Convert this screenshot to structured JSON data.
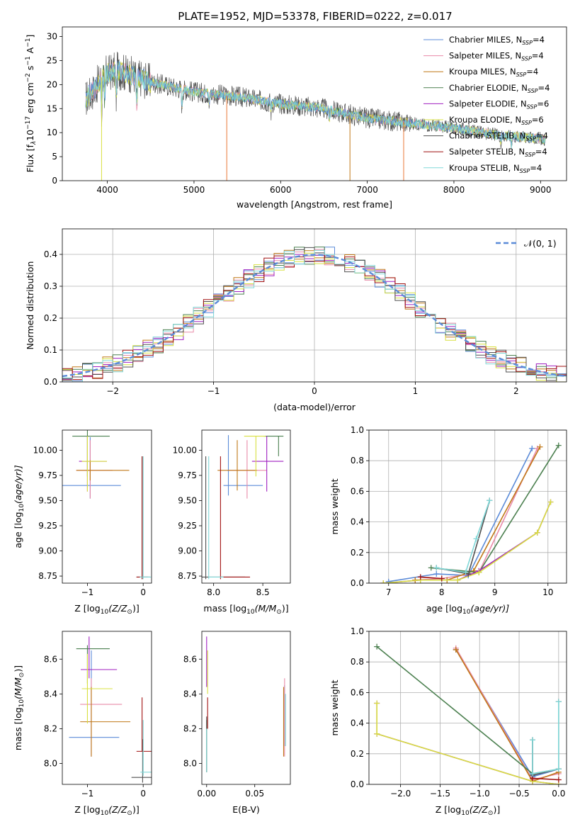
{
  "title": "PLATE=1952, MJD=53378, FIBERID=0222, z=0.017",
  "colors": {
    "Chabrier MILES": "#5b8bd8",
    "Salpeter MILES": "#e88aa8",
    "Kroupa MILES": "#c07818",
    "Chabrier ELODIE": "#4c8050",
    "Salpeter ELODIE": "#a020c0",
    "Kroupa ELODIE": "#d8e040",
    "Chabrier STELIB": "#505050",
    "Salpeter STELIB": "#a01010",
    "Kroupa STELIB": "#80d8d8",
    "normal": "#5b8bd8",
    "extra_orange": "#e87838"
  },
  "chart_data": [
    {
      "id": "spectrum",
      "type": "line",
      "xlabel": "wavelength [Angstrom, rest frame]",
      "ylabel_main": "Flux [f",
      "ylabel_sub": "λ",
      "ylabel_rest": "10",
      "ylabel_exp": "−17",
      "ylabel_rest2": " erg cm",
      "ylabel_exp2": "−2",
      "ylabel_rest3": " s",
      "ylabel_exp3": "−1",
      "ylabel_rest4": " A",
      "ylabel_exp4": "−1",
      "ylabel_end": "]",
      "xlim": [
        3480,
        9300
      ],
      "ylim": [
        0,
        32
      ],
      "xticks": [
        4000,
        5000,
        6000,
        7000,
        8000,
        9000
      ],
      "yticks": [
        0,
        5,
        10,
        15,
        20,
        25,
        30
      ],
      "continuum": [
        [
          3750,
          17
        ],
        [
          3850,
          19
        ],
        [
          3950,
          22
        ],
        [
          4100,
          23
        ],
        [
          4300,
          22
        ],
        [
          4500,
          20.5
        ],
        [
          5000,
          18.5
        ],
        [
          5500,
          17.5
        ],
        [
          6000,
          16
        ],
        [
          6500,
          15
        ],
        [
          7000,
          13
        ],
        [
          7500,
          12
        ],
        [
          8000,
          11
        ],
        [
          8500,
          9.5
        ],
        [
          9000,
          8.8
        ],
        [
          9050,
          8.5
        ]
      ],
      "drops": [
        {
          "x": 3933,
          "series": "Kroupa ELODIE"
        },
        {
          "x": 5378,
          "series": "extra_orange"
        },
        {
          "x": 6800,
          "series": "Kroupa MILES"
        },
        {
          "x": 7420,
          "series": "extra_orange"
        }
      ],
      "legend": [
        {
          "name": "Chabrier MILES",
          "count": "4"
        },
        {
          "name": "Salpeter MILES",
          "count": "4"
        },
        {
          "name": "Kroupa MILES",
          "count": "4"
        },
        {
          "name": "Chabrier ELODIE",
          "count": "4"
        },
        {
          "name": "Salpeter ELODIE",
          "count": "6"
        },
        {
          "name": "Kroupa ELODIE",
          "count": "6"
        },
        {
          "name": "Chabrier STELIB",
          "count": "4"
        },
        {
          "name": "Salpeter STELIB",
          "count": "4"
        },
        {
          "name": "Kroupa STELIB",
          "count": "4"
        }
      ],
      "legend_n": "N",
      "legend_ssp": "SSP",
      "legend_placement": "top-right"
    },
    {
      "id": "residuals",
      "type": "histogram",
      "xlabel": "(data-model)/error",
      "ylabel": "Normed distribution",
      "xlim": [
        -2.5,
        2.5
      ],
      "ylim": [
        0,
        0.48
      ],
      "xticks": [
        -2,
        -1,
        0,
        1,
        2
      ],
      "yticks": [
        0.0,
        0.1,
        0.2,
        0.3,
        0.4
      ],
      "grid": true,
      "bin_width": 0.1,
      "legend_label": "𝒩(0, 1)",
      "legend_placement": "top-right"
    },
    {
      "id": "age_vs_Z",
      "type": "errorbar",
      "xlabel": "Z [log",
      "xlabel_sub": "10",
      "xlabel_rest": "(Z/Z",
      "xlabel_sub2": "⊙",
      "xlabel_end": ")]",
      "ylabel": "age  [log",
      "ylabel_sub": "10",
      "ylabel_rest": "(age/yr)]",
      "xlim": [
        -1.45,
        0.15
      ],
      "ylim": [
        8.68,
        10.2
      ],
      "xticks": [
        -1,
        0
      ],
      "yticks": [
        8.75,
        9.0,
        9.25,
        9.5,
        9.75,
        10.0
      ],
      "points": [
        {
          "series": "Chabrier MILES",
          "x": -0.95,
          "xlo": 1.4,
          "xhi": 0.55,
          "y": 9.65,
          "ylo": 0.13,
          "yhi": 0.48
        },
        {
          "series": "Salpeter MILES",
          "x": -0.95,
          "xlo": 0.25,
          "xhi": 0.4,
          "y": 9.8,
          "ylo": 0.28,
          "yhi": 0.3
        },
        {
          "series": "Kroupa MILES",
          "x": -0.95,
          "xlo": 0.25,
          "xhi": 0.7,
          "y": 9.8,
          "ylo": 0.1,
          "yhi": 0.1
        },
        {
          "series": "Chabrier ELODIE",
          "x": -1.0,
          "xlo": 0.27,
          "xhi": 0.4,
          "y": 10.14,
          "ylo": 0.4,
          "yhi": 0.1
        },
        {
          "series": "Salpeter ELODIE",
          "x": -1.0,
          "xlo": 0.15,
          "xhi": 0.35,
          "y": 9.89,
          "ylo": 0.3,
          "yhi": 0.25
        },
        {
          "series": "Kroupa ELODIE",
          "x": -1.0,
          "xlo": 0.1,
          "xhi": 0.35,
          "y": 9.89,
          "ylo": 0.3,
          "yhi": 0.25
        },
        {
          "series": "Chabrier STELIB",
          "x": -0.02,
          "xlo": 0.1,
          "xhi": 0.14,
          "y": 8.74,
          "ylo": 0.02,
          "yhi": 1.2
        },
        {
          "series": "Salpeter STELIB",
          "x": -0.02,
          "xlo": 0.1,
          "xhi": 0.1,
          "y": 8.74,
          "ylo": 0.02,
          "yhi": 1.2
        },
        {
          "series": "Kroupa STELIB",
          "x": 0.0,
          "xlo": 0.06,
          "xhi": 0.14,
          "y": 8.74,
          "ylo": 0.02,
          "yhi": 1.2
        }
      ]
    },
    {
      "id": "age_vs_mass",
      "type": "errorbar",
      "xlabel": "mass [log",
      "xlabel_sub": "10",
      "xlabel_rest": "(M/M",
      "xlabel_sub2": "⊙",
      "xlabel_end": ")]",
      "xlim": [
        7.88,
        8.78
      ],
      "ylim": [
        8.68,
        10.2
      ],
      "xticks": [
        8.0,
        8.5
      ],
      "yticks": [
        8.75,
        9.0,
        9.25,
        9.5,
        9.75,
        10.0
      ],
      "points": [
        {
          "series": "Chabrier MILES",
          "x": 8.15,
          "xlo": 0.05,
          "xhi": 0.35,
          "y": 9.65,
          "ylo": 0.1,
          "yhi": 0.5
        },
        {
          "series": "Salpeter MILES",
          "x": 8.34,
          "xlo": 0.2,
          "xhi": 0.2,
          "y": 9.8,
          "ylo": 0.28,
          "yhi": 0.3
        },
        {
          "series": "Kroupa MILES",
          "x": 8.24,
          "xlo": 0.2,
          "xhi": 0.2,
          "y": 9.8,
          "ylo": 0.2,
          "yhi": 0.3
        },
        {
          "series": "Chabrier ELODIE",
          "x": 8.66,
          "xlo": 0.15,
          "xhi": 0.05,
          "y": 10.14,
          "ylo": 0.2,
          "yhi": 0.0
        },
        {
          "series": "Salpeter ELODIE",
          "x": 8.54,
          "xlo": 0.15,
          "xhi": 0.17,
          "y": 9.89,
          "ylo": 0.3,
          "yhi": 0.25
        },
        {
          "series": "Kroupa ELODIE",
          "x": 8.43,
          "xlo": 0.12,
          "xhi": 0.1,
          "y": 10.14,
          "ylo": 0.4,
          "yhi": 0.0
        },
        {
          "series": "Chabrier STELIB",
          "x": 7.92,
          "xlo": 0.05,
          "xhi": 0.4,
          "y": 8.74,
          "ylo": 0.02,
          "yhi": 1.2
        },
        {
          "series": "Salpeter STELIB",
          "x": 8.07,
          "xlo": 0.0,
          "xhi": 0.3,
          "y": 8.74,
          "ylo": 0.02,
          "yhi": 1.2
        },
        {
          "series": "Kroupa STELIB",
          "x": 7.95,
          "xlo": 0.0,
          "xhi": 0.15,
          "y": 8.74,
          "ylo": 0.02,
          "yhi": 1.2
        }
      ]
    },
    {
      "id": "weight_vs_age",
      "type": "line",
      "xlabel": "age  [log",
      "xlabel_sub": "10",
      "xlabel_rest": "(age/yr)]",
      "ylabel": "mass weight",
      "xlim": [
        6.63,
        10.35
      ],
      "ylim": [
        0,
        1.0
      ],
      "xticks": [
        7,
        8,
        9,
        10
      ],
      "yticks": [
        0.0,
        0.2,
        0.4,
        0.6,
        0.8,
        1.0
      ],
      "grid": true,
      "series": [
        {
          "name": "Chabrier MILES",
          "x": [
            7.0,
            7.9,
            8.5,
            9.7
          ],
          "y": [
            0.01,
            0.06,
            0.05,
            0.88
          ]
        },
        {
          "name": "Salpeter MILES",
          "x": [
            7.5,
            8.0,
            8.7,
            9.8
          ],
          "y": [
            0.02,
            0.03,
            0.07,
            0.88
          ]
        },
        {
          "name": "Kroupa MILES",
          "x": [
            7.5,
            8.1,
            8.6,
            9.85
          ],
          "y": [
            0.02,
            0.02,
            0.08,
            0.89
          ]
        },
        {
          "name": "Chabrier ELODIE",
          "x": [
            7.8,
            8.7,
            10.2
          ],
          "y": [
            0.1,
            0.07,
            0.9
          ]
        },
        {
          "name": "Salpeter ELODIE",
          "x": [
            6.9,
            7.6,
            8.3,
            8.7,
            9.8,
            10.05
          ],
          "y": [
            0.0,
            0.02,
            0.02,
            0.08,
            0.33,
            0.53
          ]
        },
        {
          "name": "Kroupa ELODIE",
          "x": [
            6.9,
            7.6,
            8.3,
            8.7,
            9.8,
            10.05
          ],
          "y": [
            0.0,
            0.02,
            0.02,
            0.07,
            0.33,
            0.53
          ]
        },
        {
          "name": "Chabrier STELIB",
          "x": [
            7.9,
            8.5,
            8.9
          ],
          "y": [
            0.1,
            0.06,
            0.54
          ]
        },
        {
          "name": "Salpeter STELIB",
          "x": [
            7.6,
            8.0
          ],
          "y": [
            0.04,
            0.03
          ]
        },
        {
          "name": "Kroupa STELIB",
          "x": [
            7.9,
            8.45,
            8.65,
            8.9
          ],
          "y": [
            0.1,
            0.07,
            0.29,
            0.54
          ]
        }
      ]
    },
    {
      "id": "mass_vs_Z",
      "type": "errorbar",
      "xlabel": "Z [log",
      "xlabel_sub": "10",
      "xlabel_rest": "(Z/Z",
      "xlabel_sub2": "⊙",
      "xlabel_end": ")]",
      "ylabel": "mass [log",
      "ylabel_sub": "10",
      "ylabel_rest": "(M/M",
      "ylabel_sub2": "⊙",
      "ylabel_end": ")]",
      "xlim": [
        -1.45,
        0.15
      ],
      "ylim": [
        7.88,
        8.76
      ],
      "xticks": [
        -1,
        0
      ],
      "yticks": [
        8.0,
        8.2,
        8.4,
        8.6
      ],
      "points": [
        {
          "series": "Chabrier MILES",
          "x": -0.93,
          "xlo": 0.4,
          "xhi": 0.5,
          "y": 8.15,
          "ylo": 0.11,
          "yhi": 0.5
        },
        {
          "series": "Salpeter MILES",
          "x": -0.93,
          "xlo": 0.2,
          "xhi": 0.55,
          "y": 8.34,
          "ylo": 0.3,
          "yhi": 0.15
        },
        {
          "series": "Kroupa MILES",
          "x": -0.93,
          "xlo": 0.2,
          "xhi": 0.7,
          "y": 8.24,
          "ylo": 0.2,
          "yhi": 0.2
        },
        {
          "series": "Chabrier ELODIE",
          "x": -1.0,
          "xlo": 0.2,
          "xhi": 0.4,
          "y": 8.66,
          "ylo": 0.2,
          "yhi": 0.02
        },
        {
          "series": "Salpeter ELODIE",
          "x": -0.97,
          "xlo": 0.15,
          "xhi": 0.5,
          "y": 8.54,
          "ylo": 0.05,
          "yhi": 0.19
        },
        {
          "series": "Kroupa ELODIE",
          "x": -1.0,
          "xlo": 0.1,
          "xhi": 0.45,
          "y": 8.43,
          "ylo": 0.2,
          "yhi": 0.2
        },
        {
          "series": "Chabrier STELIB",
          "x": -0.01,
          "xlo": 0.2,
          "xhi": 0.2,
          "y": 7.92,
          "ylo": 0.03,
          "yhi": 0.22
        },
        {
          "series": "Salpeter STELIB",
          "x": -0.02,
          "xlo": 0.1,
          "xhi": 0.2,
          "y": 8.07,
          "ylo": 0.0,
          "yhi": 0.31
        },
        {
          "series": "Kroupa STELIB",
          "x": 0.0,
          "xlo": 0.05,
          "xhi": 0.2,
          "y": 7.95,
          "ylo": 0.02,
          "yhi": 0.3
        }
      ]
    },
    {
      "id": "mass_vs_EBV",
      "type": "errorbar",
      "xlabel": "E(B-V)",
      "xlim": [
        -0.005,
        0.087
      ],
      "ylim": [
        7.88,
        8.76
      ],
      "xticks": [
        0.0,
        0.05
      ],
      "yticks": [
        8.0,
        8.2,
        8.4,
        8.6
      ],
      "points": [
        {
          "series": "Chabrier MILES",
          "x": 0.081,
          "xlo": 0,
          "xhi": 0,
          "y": 8.15,
          "ylo": 0.05,
          "yhi": 0.3
        },
        {
          "series": "Salpeter MILES",
          "x": 0.081,
          "xlo": 0,
          "xhi": 0,
          "y": 8.34,
          "ylo": 0.3,
          "yhi": 0.15
        },
        {
          "series": "Kroupa MILES",
          "x": 0.08,
          "xlo": 0,
          "xhi": 0,
          "y": 8.24,
          "ylo": 0.2,
          "yhi": 0.2
        },
        {
          "series": "Chabrier ELODIE",
          "x": 0.0,
          "xlo": 0,
          "xhi": 0,
          "y": 8.1,
          "ylo": 0.15,
          "yhi": 0.15
        },
        {
          "series": "Salpeter ELODIE",
          "x": 0.0,
          "xlo": 0,
          "xhi": 0,
          "y": 8.54,
          "ylo": 0.1,
          "yhi": 0.19
        },
        {
          "series": "Kroupa ELODIE",
          "x": 0.001,
          "xlo": 0,
          "xhi": 0,
          "y": 8.5,
          "ylo": 0.1,
          "yhi": 0.15
        },
        {
          "series": "Chabrier STELIB",
          "x": 0.0,
          "xlo": 0,
          "xhi": 0,
          "y": 8.1,
          "ylo": 0.15,
          "yhi": 0.17
        },
        {
          "series": "Salpeter STELIB",
          "x": 0.001,
          "xlo": 0,
          "xhi": 0,
          "y": 8.3,
          "ylo": 0.1,
          "yhi": 0.08
        },
        {
          "series": "Kroupa STELIB",
          "x": 0.0,
          "xlo": 0,
          "xhi": 0,
          "y": 8.05,
          "ylo": 0.1,
          "yhi": 0.15
        },
        {
          "series": "Kroupa STELIB",
          "x": 0.082,
          "xlo": 0,
          "xhi": 0,
          "y": 8.25,
          "ylo": 0.15,
          "yhi": 0.15
        }
      ]
    },
    {
      "id": "weight_vs_Z",
      "type": "line",
      "xlabel": "Z [log",
      "xlabel_sub": "10",
      "xlabel_rest": "(Z/Z",
      "xlabel_sub2": "⊙",
      "xlabel_end": ")]",
      "ylabel": "mass weight",
      "xlim": [
        -2.4,
        0.1
      ],
      "ylim": [
        0,
        1.0
      ],
      "xticks": [
        -2.0,
        -1.5,
        -1.0,
        -0.5,
        0.0
      ],
      "yticks": [
        0.0,
        0.2,
        0.4,
        0.6,
        0.8,
        1.0
      ],
      "grid": true,
      "series": [
        {
          "name": "Chabrier MILES",
          "x": [
            -1.3,
            -0.33,
            0.0
          ],
          "y": [
            0.88,
            0.05,
            0.1
          ]
        },
        {
          "name": "Salpeter MILES",
          "x": [
            -1.3,
            -0.33,
            0.0
          ],
          "y": [
            0.89,
            0.03,
            0.07
          ]
        },
        {
          "name": "Kroupa MILES",
          "x": [
            -1.3,
            -0.33,
            0.0
          ],
          "y": [
            0.88,
            0.02,
            0.08
          ]
        },
        {
          "name": "Chabrier ELODIE",
          "x": [
            -2.3,
            -0.33,
            0.0
          ],
          "y": [
            0.9,
            0.07,
            0.1
          ]
        },
        {
          "name": "Salpeter ELODIE",
          "x": [
            -2.3,
            -2.3,
            -0.33,
            0.0
          ],
          "y": [
            0.53,
            0.33,
            0.02,
            0.0
          ]
        },
        {
          "name": "Kroupa ELODIE",
          "x": [
            -2.3,
            -2.3,
            -0.33,
            0.0
          ],
          "y": [
            0.53,
            0.33,
            0.02,
            0.0
          ]
        },
        {
          "name": "Chabrier STELIB",
          "x": [
            -0.33,
            -0.33,
            0.0,
            0.0
          ],
          "y": [
            0.29,
            0.06,
            0.1,
            0.54
          ]
        },
        {
          "name": "Salpeter STELIB",
          "x": [
            -0.33,
            0.0
          ],
          "y": [
            0.04,
            0.03
          ]
        },
        {
          "name": "Kroupa STELIB",
          "x": [
            -0.33,
            -0.33,
            0.0,
            0.0
          ],
          "y": [
            0.29,
            0.07,
            0.1,
            0.54
          ]
        }
      ]
    }
  ]
}
